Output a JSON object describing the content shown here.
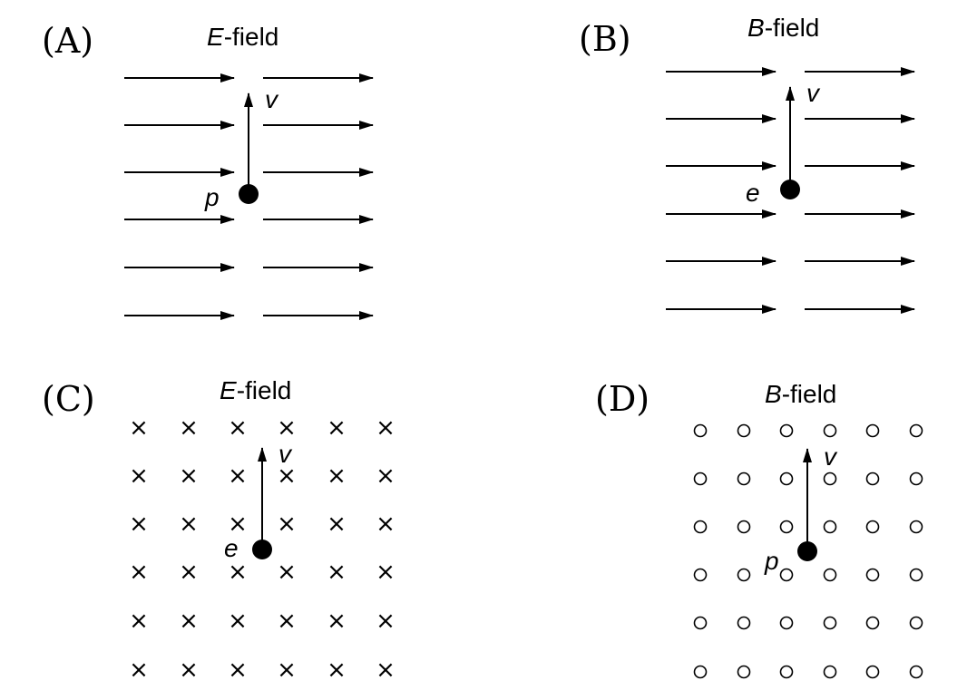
{
  "panels": [
    {
      "id": "A",
      "label": "(A)",
      "field_symbol": "E",
      "field_suffix": "-field",
      "field_pattern": "arrows-right",
      "particle": "p",
      "velocity": "v"
    },
    {
      "id": "B",
      "label": "(B)",
      "field_symbol": "B",
      "field_suffix": "-field",
      "field_pattern": "arrows-right",
      "particle": "e",
      "velocity": "v"
    },
    {
      "id": "C",
      "label": "(C)",
      "field_symbol": "E",
      "field_suffix": "-field",
      "field_pattern": "into-page-crosses",
      "particle": "e",
      "velocity": "v"
    },
    {
      "id": "D",
      "label": "(D)",
      "field_symbol": "B",
      "field_suffix": "-field",
      "field_pattern": "out-of-page-circles",
      "particle": "p",
      "velocity": "v"
    }
  ],
  "symbols": {
    "cross": "×"
  }
}
